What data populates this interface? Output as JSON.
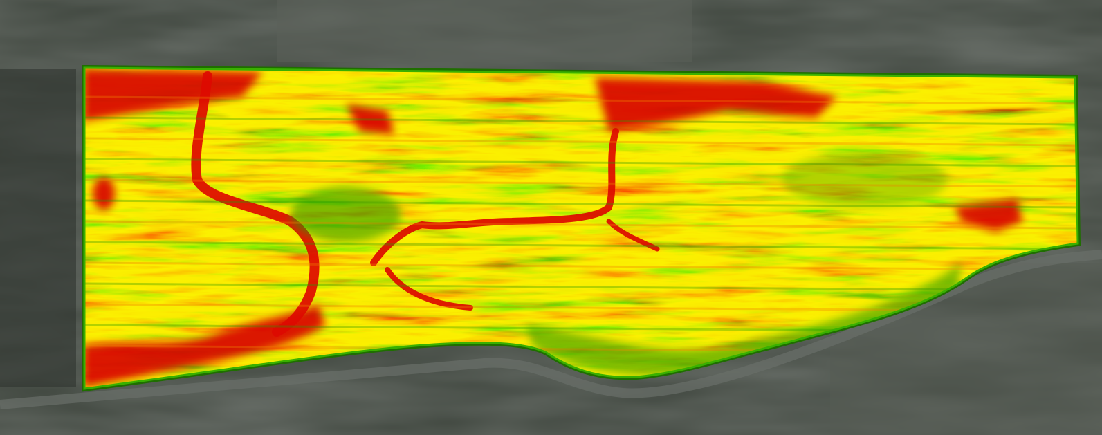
{
  "map": {
    "layer": "vegetation-index",
    "color_scale": [
      "#d80000",
      "#ee3a00",
      "#f79d00",
      "#f5e100",
      "#9fd400",
      "#2f9a00"
    ],
    "background_color": "#3a403a",
    "boundary_color": "#2f9a00"
  }
}
